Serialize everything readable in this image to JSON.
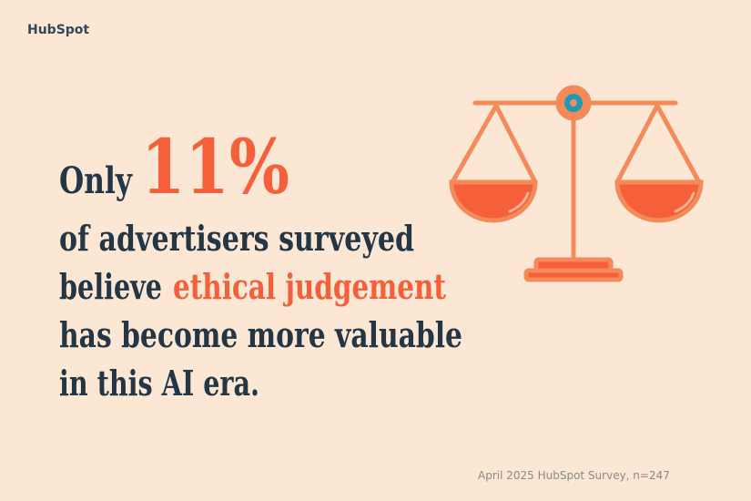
{
  "logo": "HubSpot",
  "headline": {
    "lead": "Only",
    "stat": "11%",
    "lines": [
      "of advertisers surveyed",
      "believe",
      "ethical judgement",
      "has become more valuable",
      "in this AI era."
    ]
  },
  "footer": "April 2025 HubSpot Survey, n=247"
}
